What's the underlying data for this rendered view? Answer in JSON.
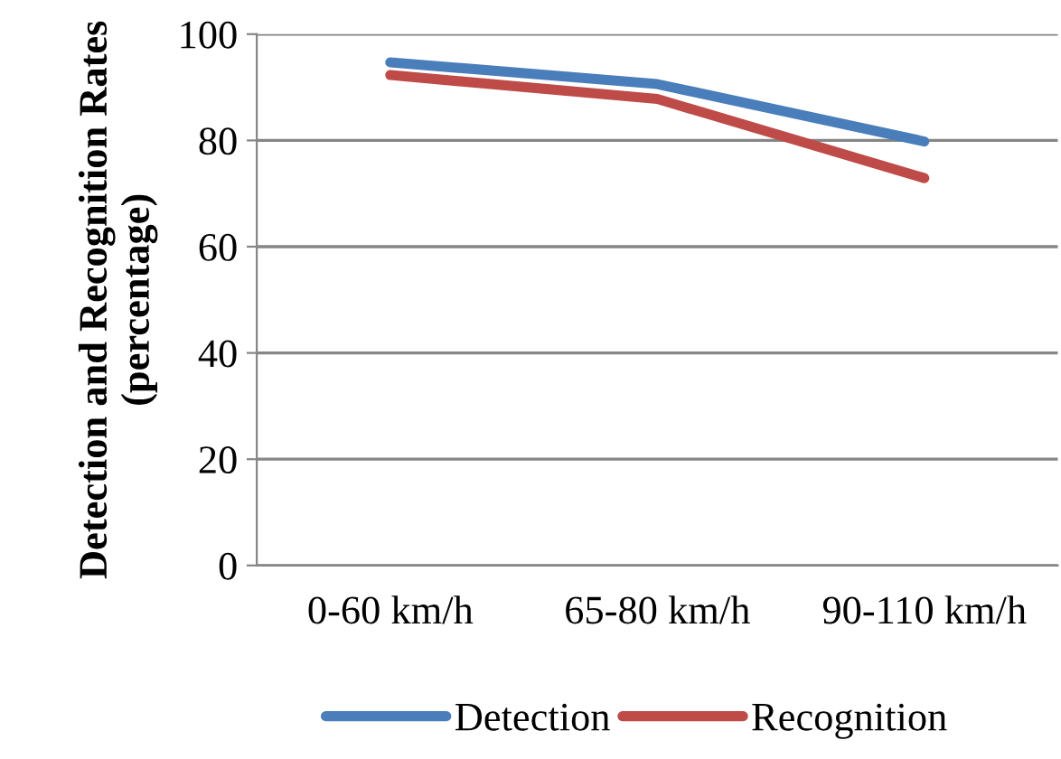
{
  "chart_data": {
    "type": "line",
    "ylabel": "Detection and Recognition Rates (percentage)",
    "categories": [
      "0-60 km/h",
      "65-80 km/h",
      "90-110 km/h"
    ],
    "series": [
      {
        "name": "Detection",
        "color": "#4a7ebb",
        "values": [
          94.7,
          90.6,
          79.8
        ]
      },
      {
        "name": "Recognition",
        "color": "#be4b48",
        "values": [
          92.3,
          87.8,
          72.9
        ]
      }
    ],
    "ylim": [
      0,
      100
    ],
    "yticks": [
      0,
      20,
      40,
      60,
      80,
      100
    ],
    "grid": "y",
    "legend": "bottom",
    "marker": "none",
    "line_style": "solid"
  }
}
